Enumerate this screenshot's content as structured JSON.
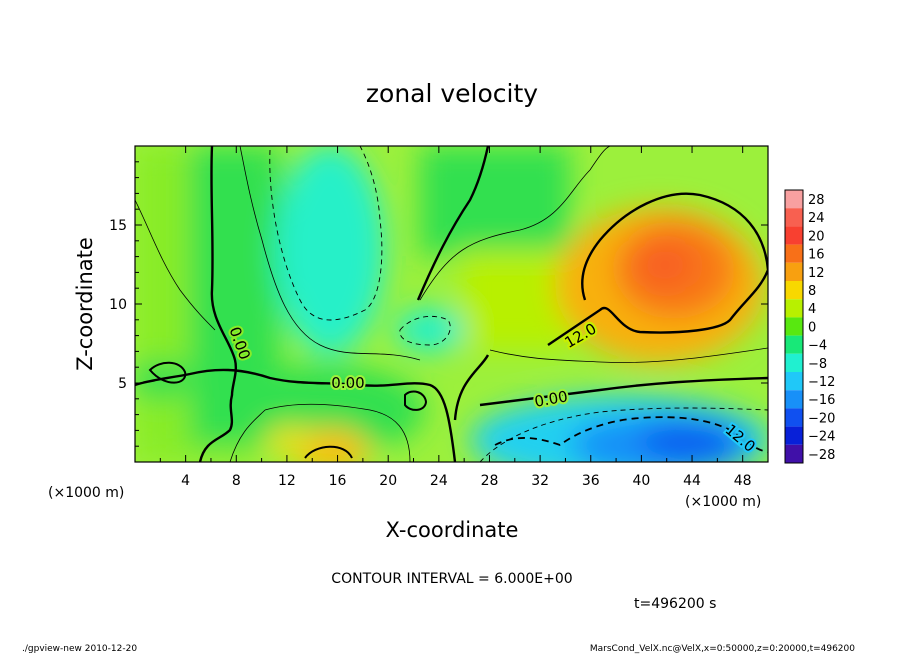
{
  "chart_data": {
    "type": "heatmap",
    "title": "zonal velocity",
    "xlabel": "X-coordinate",
    "ylabel": "Z-coordinate",
    "x_unit_note": "(×1000 m)",
    "xlim": [
      0,
      50
    ],
    "ylim": [
      0,
      20
    ],
    "x_ticks": [
      4,
      8,
      12,
      16,
      20,
      24,
      28,
      32,
      36,
      40,
      44,
      48
    ],
    "x_tick_labels": [
      "4",
      "8",
      "12",
      "16",
      "20",
      "24",
      "28",
      "32",
      "36",
      "40",
      "44",
      "48"
    ],
    "y_ticks": [
      5,
      10,
      15
    ],
    "y_tick_labels": [
      "5",
      "10",
      "15"
    ],
    "colorbar": {
      "levels": [
        28,
        24,
        20,
        16,
        12,
        8,
        4,
        0,
        -4,
        -8,
        -12,
        -16,
        -20,
        -24,
        -28
      ],
      "labels": [
        "28",
        "24",
        "20",
        "16",
        "12",
        "8",
        "4",
        "0",
        "−4",
        "−8",
        "−12",
        "−16",
        "−20",
        "−24",
        "−28"
      ],
      "colors": [
        "#f8a0a0",
        "#f86050",
        "#f84030",
        "#f87018",
        "#f8a010",
        "#f8d800",
        "#b8f000",
        "#58e810",
        "#18e878",
        "#20f0d0",
        "#20c8f8",
        "#1890f8",
        "#1050f0",
        "#0820d8",
        "#4010a8"
      ]
    },
    "features": [
      {
        "kind": "positive-max",
        "x": 43,
        "z": 13,
        "value": 18
      },
      {
        "kind": "negative-min",
        "x": 43,
        "z": 1.5,
        "value": -16
      },
      {
        "kind": "weak-negative",
        "x": 16,
        "z": 14,
        "value": -9
      },
      {
        "kind": "positive-low",
        "x": 16,
        "z": 0.5,
        "value": 14
      }
    ],
    "contour_labels": [
      "0.00",
      "0.00",
      "0.00",
      "12.0",
      "12.0"
    ],
    "contour_interval_text": "CONTOUR INTERVAL = 6.000E+00",
    "time_text": "t=496200 s"
  },
  "footer": {
    "left": "./gpview-new  2010-12-20",
    "right": "MarsCond_VelX.nc@VelX,x=0:50000,z=0:20000,t=496200"
  }
}
